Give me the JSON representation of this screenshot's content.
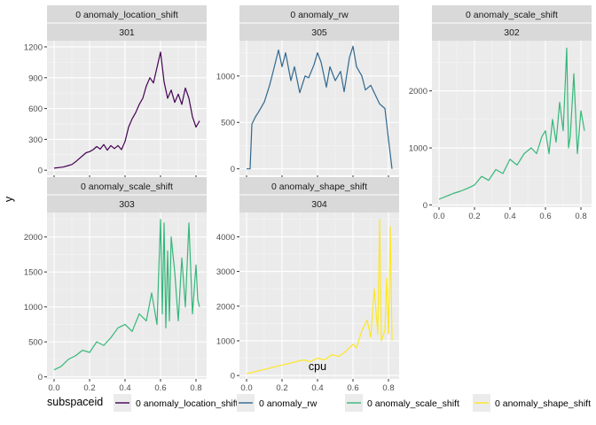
{
  "chart_data": {
    "type": "line",
    "xlabel": "cpu",
    "ylabel": "y",
    "legend": {
      "title": "subspaceid",
      "placement": "bottom",
      "items": [
        {
          "label": "0 anomaly_location_shift",
          "color": "#440154"
        },
        {
          "label": "0 anomaly_rw",
          "color": "#31688E"
        },
        {
          "label": "0 anomaly_scale_shift",
          "color": "#35B779"
        },
        {
          "label": "0 anomaly_shape_shift",
          "color": "#FDE725"
        }
      ]
    },
    "grid": true,
    "panels": [
      {
        "strip_top": "0 anomaly_location_shift",
        "strip_bottom": "301",
        "color": "#440154",
        "xlim": [
          -0.04,
          0.86
        ],
        "ylim": [
          -50,
          1260
        ],
        "yticks": [
          0,
          300,
          600,
          900,
          1200
        ],
        "xticks": [
          0.0,
          0.2,
          0.4,
          0.6,
          0.8
        ],
        "show_x_tick_labels": false,
        "x": [
          0.0,
          0.05,
          0.08,
          0.1,
          0.12,
          0.14,
          0.16,
          0.18,
          0.2,
          0.22,
          0.24,
          0.26,
          0.28,
          0.3,
          0.32,
          0.34,
          0.36,
          0.38,
          0.4,
          0.42,
          0.44,
          0.46,
          0.48,
          0.5,
          0.52,
          0.54,
          0.56,
          0.58,
          0.6,
          0.62,
          0.64,
          0.66,
          0.68,
          0.7,
          0.72,
          0.74,
          0.76,
          0.78,
          0.8,
          0.82
        ],
        "y": [
          20,
          30,
          45,
          55,
          80,
          110,
          140,
          170,
          180,
          200,
          230,
          205,
          250,
          195,
          240,
          210,
          240,
          200,
          280,
          420,
          500,
          560,
          640,
          700,
          820,
          900,
          850,
          1000,
          1150,
          860,
          700,
          780,
          660,
          740,
          640,
          800,
          700,
          520,
          420,
          480
        ]
      },
      {
        "strip_top": "0 anomaly_rw",
        "strip_bottom": "305",
        "color": "#31688E",
        "xlim": [
          -0.04,
          0.86
        ],
        "ylim": [
          -70,
          1380
        ],
        "yticks": [
          0,
          500,
          1000
        ],
        "xticks": [
          0.0,
          0.2,
          0.4,
          0.6,
          0.8
        ],
        "show_x_tick_labels": false,
        "x": [
          0.0,
          0.02,
          0.03,
          0.05,
          0.07,
          0.1,
          0.13,
          0.15,
          0.18,
          0.2,
          0.22,
          0.25,
          0.27,
          0.3,
          0.33,
          0.35,
          0.38,
          0.4,
          0.42,
          0.45,
          0.47,
          0.5,
          0.53,
          0.55,
          0.58,
          0.6,
          0.62,
          0.65,
          0.67,
          0.7,
          0.72,
          0.75,
          0.78,
          0.8,
          0.82
        ],
        "y": [
          0,
          0,
          480,
          560,
          620,
          720,
          900,
          1050,
          1280,
          1100,
          1250,
          950,
          1100,
          820,
          1000,
          980,
          1120,
          1250,
          1150,
          880,
          1100,
          950,
          1050,
          830,
          1200,
          1320,
          1100,
          1000,
          850,
          900,
          820,
          700,
          650,
          320,
          0
        ]
      },
      {
        "strip_top": "0 anomaly_scale_shift",
        "strip_bottom": "302",
        "color": "#35B779",
        "xlim": [
          -0.04,
          0.86
        ],
        "ylim": [
          -40,
          2880
        ],
        "yticks": [
          0,
          1000,
          2000
        ],
        "xticks": [
          0.0,
          0.2,
          0.4,
          0.6,
          0.8
        ],
        "show_x_tick_labels": true,
        "x": [
          0.0,
          0.04,
          0.08,
          0.12,
          0.16,
          0.2,
          0.24,
          0.28,
          0.32,
          0.36,
          0.4,
          0.44,
          0.48,
          0.52,
          0.55,
          0.58,
          0.6,
          0.62,
          0.64,
          0.66,
          0.68,
          0.7,
          0.72,
          0.73,
          0.74,
          0.76,
          0.78,
          0.8,
          0.82
        ],
        "y": [
          100,
          150,
          200,
          240,
          290,
          350,
          500,
          430,
          620,
          550,
          800,
          700,
          900,
          1000,
          900,
          1200,
          1300,
          900,
          1500,
          1100,
          1800,
          1300,
          2750,
          1000,
          1200,
          2300,
          900,
          1650,
          1300
        ]
      },
      {
        "strip_top": "0 anomaly_scale_shift",
        "strip_bottom": "303",
        "color": "#35B779",
        "xlim": [
          -0.04,
          0.86
        ],
        "ylim": [
          -30,
          2350
        ],
        "yticks": [
          0,
          500,
          1000,
          1500,
          2000
        ],
        "xticks": [
          0.0,
          0.2,
          0.4,
          0.6,
          0.8
        ],
        "show_x_tick_labels": true,
        "x": [
          0.0,
          0.04,
          0.08,
          0.12,
          0.16,
          0.2,
          0.24,
          0.28,
          0.32,
          0.36,
          0.4,
          0.44,
          0.48,
          0.52,
          0.55,
          0.58,
          0.6,
          0.61,
          0.62,
          0.63,
          0.64,
          0.65,
          0.66,
          0.68,
          0.7,
          0.72,
          0.74,
          0.76,
          0.78,
          0.8,
          0.81,
          0.82
        ],
        "y": [
          100,
          150,
          250,
          300,
          380,
          350,
          500,
          450,
          560,
          700,
          750,
          650,
          900,
          800,
          1200,
          750,
          2250,
          900,
          2200,
          700,
          1800,
          800,
          2000,
          1500,
          800,
          1700,
          1000,
          2200,
          900,
          1600,
          1100,
          1000
        ]
      },
      {
        "strip_top": "0 anomaly_shape_shift",
        "strip_bottom": "304",
        "color": "#FDE725",
        "xlim": [
          -0.04,
          0.86
        ],
        "ylim": [
          -100,
          4700
        ],
        "yticks": [
          0,
          1000,
          2000,
          3000,
          4000
        ],
        "xticks": [
          0.0,
          0.2,
          0.4,
          0.6,
          0.8
        ],
        "show_x_tick_labels": true,
        "x": [
          0.0,
          0.04,
          0.08,
          0.12,
          0.16,
          0.2,
          0.24,
          0.28,
          0.32,
          0.36,
          0.4,
          0.44,
          0.48,
          0.52,
          0.56,
          0.6,
          0.62,
          0.65,
          0.68,
          0.7,
          0.72,
          0.74,
          0.75,
          0.76,
          0.78,
          0.79,
          0.8,
          0.81,
          0.82
        ],
        "y": [
          50,
          100,
          150,
          200,
          250,
          300,
          350,
          400,
          450,
          400,
          500,
          450,
          600,
          550,
          700,
          900,
          800,
          1300,
          1600,
          1100,
          2500,
          1200,
          4500,
          1000,
          1300,
          2800,
          1200,
          4300,
          1000
        ]
      }
    ]
  }
}
